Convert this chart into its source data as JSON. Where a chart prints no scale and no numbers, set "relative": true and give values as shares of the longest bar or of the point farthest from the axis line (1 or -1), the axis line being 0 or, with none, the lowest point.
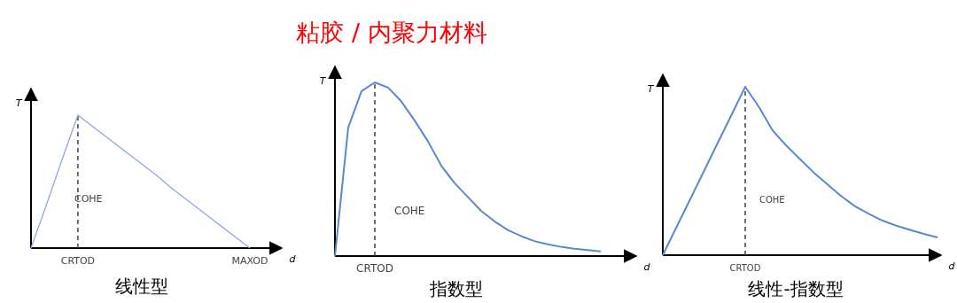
{
  "chart_data": [
    {
      "type": "other",
      "title": "粘胶 / 内聚力材料"
    },
    {
      "type": "line",
      "title": "线性型",
      "xlabel": "d",
      "ylabel": "T",
      "relative": true,
      "categories": [
        null,
        null,
        null,
        "CRTOD",
        null,
        null,
        null,
        null,
        null,
        null,
        null,
        null,
        null,
        null,
        "MAXOD"
      ],
      "series": [
        {
          "color": "#8eaadb",
          "values": [
            0,
            0.33,
            0.67,
            1,
            0.91,
            0.82,
            0.73,
            0.64,
            0.55,
            0.45,
            0.36,
            0.27,
            0.18,
            0.09,
            0
          ]
        }
      ],
      "ref_lines": [
        {
          "axis": "x",
          "value": "CRTOD",
          "line_style": "dashed",
          "color": "#404040"
        }
      ],
      "annotations": [
        "COHE"
      ]
    },
    {
      "type": "line",
      "title": "指数型",
      "xlabel": "d",
      "ylabel": "T",
      "relative": true,
      "categories": [
        null,
        null,
        null,
        null,
        null,
        null,
        null,
        null,
        null,
        null,
        null,
        null,
        null,
        null,
        null,
        null,
        null,
        null,
        null,
        null,
        null
      ],
      "series": [
        {
          "color": "#5b87d0",
          "values": [
            0,
            0.74,
            0.95,
            1,
            0.97,
            0.89,
            0.78,
            0.66,
            0.52,
            0.42,
            0.34,
            0.26,
            0.2,
            0.15,
            0.115,
            0.086,
            0.068,
            0.053,
            0.042,
            0.034,
            0.027
          ]
        }
      ],
      "ref_lines": [
        {
          "axis": "x",
          "label": "CRTOD",
          "line_style": "dashed",
          "color": "#404040"
        }
      ],
      "annotations": [
        "COHE"
      ]
    },
    {
      "type": "line",
      "title": "线性-指数型",
      "xlabel": "d",
      "ylabel": "T",
      "relative": true,
      "categories": [
        null,
        null,
        null,
        null,
        null,
        null,
        null,
        null,
        null,
        null,
        null,
        null,
        null,
        null,
        null,
        null,
        null,
        null,
        null,
        null,
        null
      ],
      "series": [
        {
          "color": "#5b87d0",
          "values": [
            0,
            0.167,
            0.333,
            0.5,
            0.667,
            0.833,
            1,
            0.88,
            0.74,
            0.65,
            0.57,
            0.49,
            0.42,
            0.35,
            0.29,
            0.245,
            0.205,
            0.175,
            0.15,
            0.126,
            0.105
          ]
        }
      ],
      "ref_lines": [
        {
          "axis": "x",
          "label": "CRTOD",
          "line_style": "dashed",
          "color": "#404040"
        }
      ],
      "annotations": [
        "COHE"
      ]
    }
  ]
}
